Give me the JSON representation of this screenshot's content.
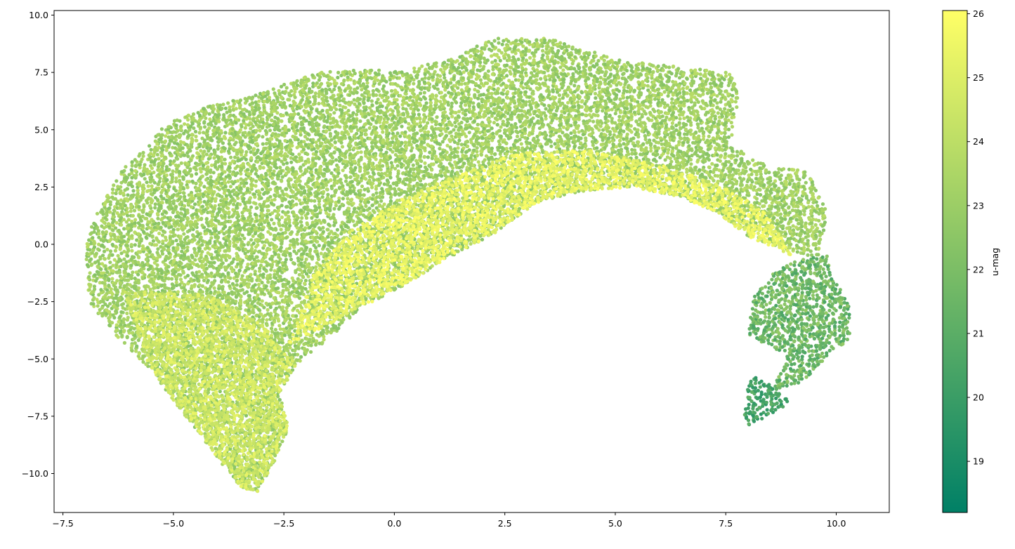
{
  "chart_data": {
    "type": "scatter",
    "title": "",
    "xlabel": "",
    "ylabel": "",
    "xlim": [
      -7.7,
      11.2
    ],
    "ylim": [
      -11.7,
      10.2
    ],
    "xticks": [
      -7.5,
      -5.0,
      -2.5,
      0.0,
      2.5,
      5.0,
      7.5,
      10.0
    ],
    "xtick_labels": [
      "−7.5",
      "−5.0",
      "−2.5",
      "0.0",
      "2.5",
      "5.0",
      "7.5",
      "10.0"
    ],
    "yticks": [
      10.0,
      7.5,
      5.0,
      2.5,
      0.0,
      -2.5,
      -5.0,
      -7.5,
      -10.0
    ],
    "ytick_labels": [
      "10.0",
      "7.5",
      "5.0",
      "2.5",
      "0.0",
      "−2.5",
      "−5.0",
      "−7.5",
      "−10.0"
    ],
    "grid": false,
    "color_variable": "u-mag",
    "colormap": "summer",
    "colormap_stops": [
      "#008066",
      "#ffff66"
    ],
    "color_range": [
      18.2,
      26.05
    ],
    "colorbar": {
      "label": "u-mag",
      "ticks": [
        19,
        20,
        21,
        22,
        23,
        24,
        25,
        26
      ],
      "tick_labels": [
        "19",
        "20",
        "21",
        "22",
        "23",
        "24",
        "25",
        "26"
      ]
    },
    "regions": [
      {
        "name": "main-body",
        "polygon": [
          [
            -7.0,
            0.0
          ],
          [
            -6.9,
            -2.6
          ],
          [
            -6.2,
            -4.2
          ],
          [
            -5.5,
            -5.5
          ],
          [
            -5.0,
            -6.8
          ],
          [
            -4.4,
            -8.3
          ],
          [
            -3.5,
            -10.6
          ],
          [
            -3.1,
            -10.8
          ],
          [
            -2.7,
            -9.4
          ],
          [
            -2.4,
            -8.0
          ],
          [
            -2.6,
            -6.5
          ],
          [
            -2.2,
            -5.2
          ],
          [
            -1.4,
            -4.0
          ],
          [
            -0.8,
            -2.8
          ],
          [
            0.2,
            -1.8
          ],
          [
            1.2,
            -0.6
          ],
          [
            2.2,
            0.4
          ],
          [
            3.2,
            1.8
          ],
          [
            4.2,
            2.3
          ],
          [
            5.4,
            2.5
          ],
          [
            6.4,
            2.1
          ],
          [
            7.3,
            1.4
          ],
          [
            8.1,
            0.2
          ],
          [
            9.6,
            -0.6
          ],
          [
            9.8,
            1.5
          ],
          [
            9.3,
            3.3
          ],
          [
            8.6,
            3.3
          ],
          [
            7.6,
            4.3
          ],
          [
            7.8,
            6.5
          ],
          [
            7.6,
            7.5
          ],
          [
            6.2,
            7.8
          ],
          [
            5.2,
            8.0
          ],
          [
            3.5,
            9.0
          ],
          [
            2.2,
            9.0
          ],
          [
            1.2,
            8.0
          ],
          [
            0.0,
            7.6
          ],
          [
            -1.6,
            7.6
          ],
          [
            -3.2,
            6.5
          ],
          [
            -4.3,
            6.0
          ],
          [
            -5.2,
            5.2
          ],
          [
            -5.6,
            4.2
          ],
          [
            -6.1,
            3.4
          ],
          [
            -6.7,
            1.5
          ]
        ],
        "value_range": [
          22.3,
          24.0
        ]
      },
      {
        "name": "bright-arc",
        "polygon": [
          [
            -2.4,
            -4.4
          ],
          [
            -1.2,
            -3.2
          ],
          [
            0.2,
            -1.8
          ],
          [
            1.2,
            -0.6
          ],
          [
            2.2,
            0.4
          ],
          [
            3.2,
            1.8
          ],
          [
            4.2,
            2.3
          ],
          [
            5.4,
            2.5
          ],
          [
            6.4,
            2.1
          ],
          [
            7.3,
            1.4
          ],
          [
            8.1,
            0.2
          ],
          [
            9.0,
            -0.5
          ],
          [
            8.4,
            1.4
          ],
          [
            7.6,
            2.4
          ],
          [
            6.2,
            3.4
          ],
          [
            4.4,
            4.1
          ],
          [
            2.8,
            4.0
          ],
          [
            1.4,
            3.0
          ],
          [
            0.2,
            2.0
          ],
          [
            -1.0,
            0.6
          ],
          [
            -1.8,
            -1.2
          ]
        ],
        "value_range": [
          24.8,
          26.0
        ]
      },
      {
        "name": "lower-left-lobe",
        "polygon": [
          [
            -6.2,
            -2.0
          ],
          [
            -5.5,
            -5.5
          ],
          [
            -5.0,
            -6.8
          ],
          [
            -4.4,
            -8.3
          ],
          [
            -3.5,
            -10.6
          ],
          [
            -3.1,
            -10.8
          ],
          [
            -2.7,
            -9.4
          ],
          [
            -2.4,
            -8.0
          ],
          [
            -2.6,
            -6.5
          ],
          [
            -2.2,
            -5.2
          ],
          [
            -3.0,
            -3.5
          ],
          [
            -4.2,
            -2.2
          ]
        ],
        "value_range": [
          24.0,
          25.4
        ]
      },
      {
        "name": "right-tail-upper",
        "polygon": [
          [
            8.1,
            -2.4
          ],
          [
            8.6,
            -1.2
          ],
          [
            9.3,
            -0.5
          ],
          [
            9.8,
            -0.5
          ],
          [
            9.9,
            -1.4
          ],
          [
            10.3,
            -2.4
          ],
          [
            10.3,
            -3.2
          ],
          [
            10.3,
            -4.2
          ],
          [
            9.9,
            -4.6
          ],
          [
            9.6,
            -5.4
          ],
          [
            9.1,
            -6.2
          ],
          [
            8.5,
            -6.4
          ],
          [
            8.9,
            -4.8
          ],
          [
            8.0,
            -4.0
          ]
        ],
        "value_range": [
          20.5,
          22.8
        ]
      },
      {
        "name": "right-tail-lower",
        "polygon": [
          [
            7.9,
            -7.9
          ],
          [
            8.1,
            -7.9
          ],
          [
            8.6,
            -7.3
          ],
          [
            9.0,
            -6.9
          ],
          [
            8.6,
            -6.3
          ],
          [
            8.2,
            -5.7
          ],
          [
            8.0,
            -6.0
          ]
        ],
        "value_range": [
          19.5,
          21.2
        ]
      }
    ]
  }
}
